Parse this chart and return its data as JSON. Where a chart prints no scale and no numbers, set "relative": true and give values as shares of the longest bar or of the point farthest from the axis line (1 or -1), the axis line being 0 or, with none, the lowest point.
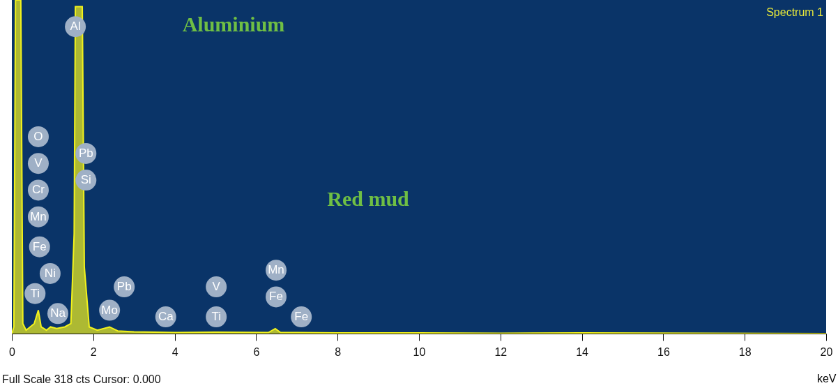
{
  "chart_data": {
    "type": "area",
    "relative": true,
    "xlabel": "keV",
    "xlim": [
      0,
      20
    ],
    "xticks": [
      0,
      2,
      4,
      6,
      8,
      10,
      12,
      14,
      16,
      18,
      20
    ],
    "grid": false,
    "series": [
      {
        "color": "#f2f21c",
        "x": [
          0,
          0.05,
          0.09,
          0.22,
          0.27,
          0.35,
          0.45,
          0.55,
          0.65,
          0.72,
          0.85,
          0.95,
          1.1,
          1.3,
          1.45,
          1.53,
          1.56,
          1.73,
          1.78,
          1.9,
          2.1,
          2.4,
          2.6,
          3.0,
          4.0,
          5.0,
          6.3,
          6.47,
          6.6,
          7.0,
          8.0,
          10.0,
          12.0,
          14.0,
          20.0
        ],
        "values": [
          0,
          0.02,
          1,
          1,
          0.03,
          0.01,
          0.02,
          0.03,
          0.07,
          0.02,
          0.01,
          0.02,
          0.015,
          0.02,
          0.03,
          0.3,
          0.98,
          0.98,
          0.2,
          0.02,
          0.01,
          0.02,
          0.008,
          0.005,
          0.003,
          0.004,
          0.003,
          0.015,
          0.003,
          0.003,
          0.002,
          0.002,
          0.001,
          0.002,
          0
        ]
      }
    ],
    "annotations": [
      {
        "text": "O",
        "x": 0.65,
        "y": 0.59
      },
      {
        "text": "V",
        "x": 0.65,
        "y": 0.51
      },
      {
        "text": "Cr",
        "x": 0.65,
        "y": 0.43
      },
      {
        "text": "Mn",
        "x": 0.65,
        "y": 0.35
      },
      {
        "text": "Fe",
        "x": 0.68,
        "y": 0.26
      },
      {
        "text": "Ni",
        "x": 0.94,
        "y": 0.18
      },
      {
        "text": "Ti",
        "x": 0.57,
        "y": 0.12
      },
      {
        "text": "Na",
        "x": 1.13,
        "y": 0.06
      },
      {
        "text": "Al",
        "x": 1.56,
        "y": 0.92
      },
      {
        "text": "Pb",
        "x": 1.82,
        "y": 0.54
      },
      {
        "text": "Si",
        "x": 1.82,
        "y": 0.46
      },
      {
        "text": "Mo",
        "x": 2.4,
        "y": 0.07
      },
      {
        "text": "Pb",
        "x": 2.76,
        "y": 0.14
      },
      {
        "text": "Ca",
        "x": 3.78,
        "y": 0.05
      },
      {
        "text": "V",
        "x": 5.02,
        "y": 0.14
      },
      {
        "text": "Ti",
        "x": 5.02,
        "y": 0.05
      },
      {
        "text": "Mn",
        "x": 6.49,
        "y": 0.19
      },
      {
        "text": "Fe",
        "x": 6.49,
        "y": 0.11
      },
      {
        "text": "Fe",
        "x": 7.11,
        "y": 0.05
      },
      "Spectrum 1",
      "Full Scale 318 cts Cursor: 0.000",
      "Aluminium",
      "Red mud"
    ]
  }
}
